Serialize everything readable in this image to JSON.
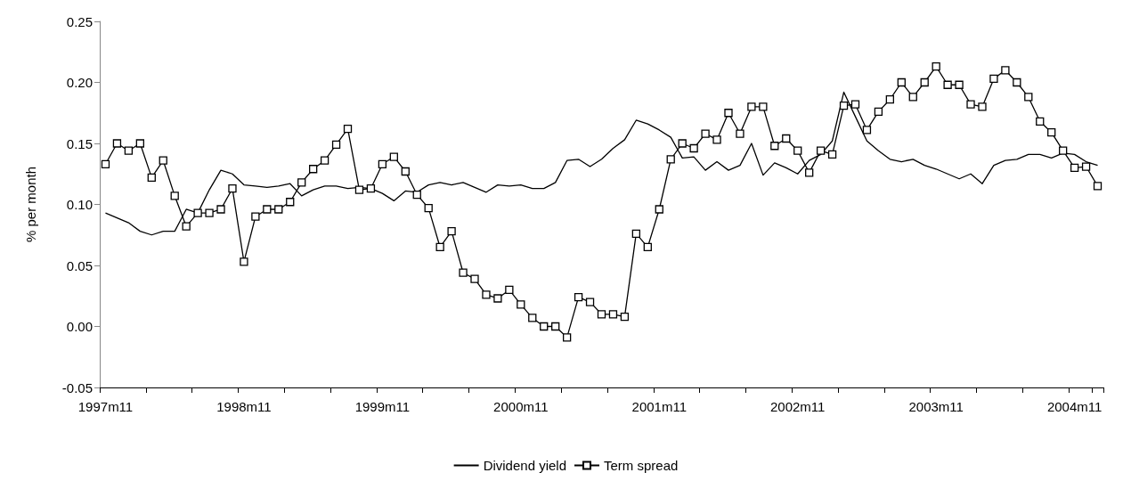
{
  "chart_data": {
    "type": "line",
    "ylabel": "% per month",
    "categories": [
      "1997m11",
      null,
      null,
      null,
      null,
      null,
      null,
      null,
      null,
      null,
      null,
      null,
      "1998m11",
      null,
      null,
      null,
      null,
      null,
      null,
      null,
      null,
      null,
      null,
      null,
      "1999m11",
      null,
      null,
      null,
      null,
      null,
      null,
      null,
      null,
      null,
      null,
      null,
      "2000m11",
      null,
      null,
      null,
      null,
      null,
      null,
      null,
      null,
      null,
      null,
      null,
      "2001m11",
      null,
      null,
      null,
      null,
      null,
      null,
      null,
      null,
      null,
      null,
      null,
      "2002m11",
      null,
      null,
      null,
      null,
      null,
      null,
      null,
      null,
      null,
      null,
      null,
      "2003m11",
      null,
      null,
      null,
      null,
      null,
      null,
      null,
      null,
      null,
      null,
      null,
      "2004m11",
      null,
      null
    ],
    "series": [
      {
        "name": "Dividend yield",
        "color": "#000000",
        "marker": "none",
        "values": [
          0.093,
          0.089,
          0.085,
          0.078,
          0.075,
          0.078,
          0.078,
          0.096,
          0.093,
          0.112,
          0.128,
          0.125,
          0.116,
          0.115,
          0.114,
          0.115,
          0.117,
          0.107,
          0.112,
          0.115,
          0.115,
          0.113,
          0.114,
          0.113,
          0.109,
          0.103,
          0.111,
          0.11,
          0.116,
          0.118,
          0.116,
          0.118,
          0.114,
          0.11,
          0.116,
          0.115,
          0.116,
          0.113,
          0.113,
          0.118,
          0.136,
          0.137,
          0.131,
          0.137,
          0.146,
          0.153,
          0.169,
          0.166,
          0.161,
          0.155,
          0.138,
          0.139,
          0.128,
          0.135,
          0.128,
          0.132,
          0.15,
          0.124,
          0.134,
          0.13,
          0.125,
          0.136,
          0.141,
          0.152,
          0.192,
          0.172,
          0.152,
          0.144,
          0.137,
          0.135,
          0.137,
          0.132,
          0.129,
          0.125,
          0.121,
          0.125,
          0.117,
          0.132,
          0.136,
          0.137,
          0.141,
          0.141,
          0.138,
          0.142,
          0.141,
          0.135,
          0.132
        ]
      },
      {
        "name": "Term spread",
        "color": "#000000",
        "marker": "square",
        "values": [
          0.133,
          0.15,
          0.144,
          0.15,
          0.122,
          0.136,
          0.107,
          0.082,
          0.093,
          0.093,
          0.096,
          0.113,
          0.053,
          0.09,
          0.096,
          0.096,
          0.102,
          0.118,
          0.129,
          0.136,
          0.149,
          0.162,
          0.112,
          0.113,
          0.133,
          0.139,
          0.127,
          0.108,
          0.097,
          0.065,
          0.078,
          0.044,
          0.039,
          0.026,
          0.023,
          0.03,
          0.018,
          0.007,
          0.0,
          0.0,
          -0.009,
          0.024,
          0.02,
          0.01,
          0.01,
          0.008,
          0.076,
          0.065,
          0.096,
          0.137,
          0.15,
          0.146,
          0.158,
          0.153,
          0.175,
          0.158,
          0.18,
          0.18,
          0.148,
          0.154,
          0.144,
          0.126,
          0.144,
          0.141,
          0.181,
          0.182,
          0.161,
          0.176,
          0.186,
          0.2,
          0.188,
          0.2,
          0.213,
          0.198,
          0.198,
          0.182,
          0.18,
          0.203,
          0.21,
          0.2,
          0.188,
          0.168,
          0.159,
          0.144,
          0.13,
          0.131,
          0.115
        ]
      }
    ],
    "ylim": [
      -0.05,
      0.25
    ],
    "yticks": [
      -0.05,
      {
        "value": 0,
        "label": "0.00"
      },
      0.05,
      {
        "value": 0.1,
        "label": "0.10"
      },
      0.15,
      {
        "value": 0.2,
        "label": "0.20"
      },
      0.25
    ],
    "grid": false,
    "legend": "bottom",
    "line_style": "solid"
  }
}
